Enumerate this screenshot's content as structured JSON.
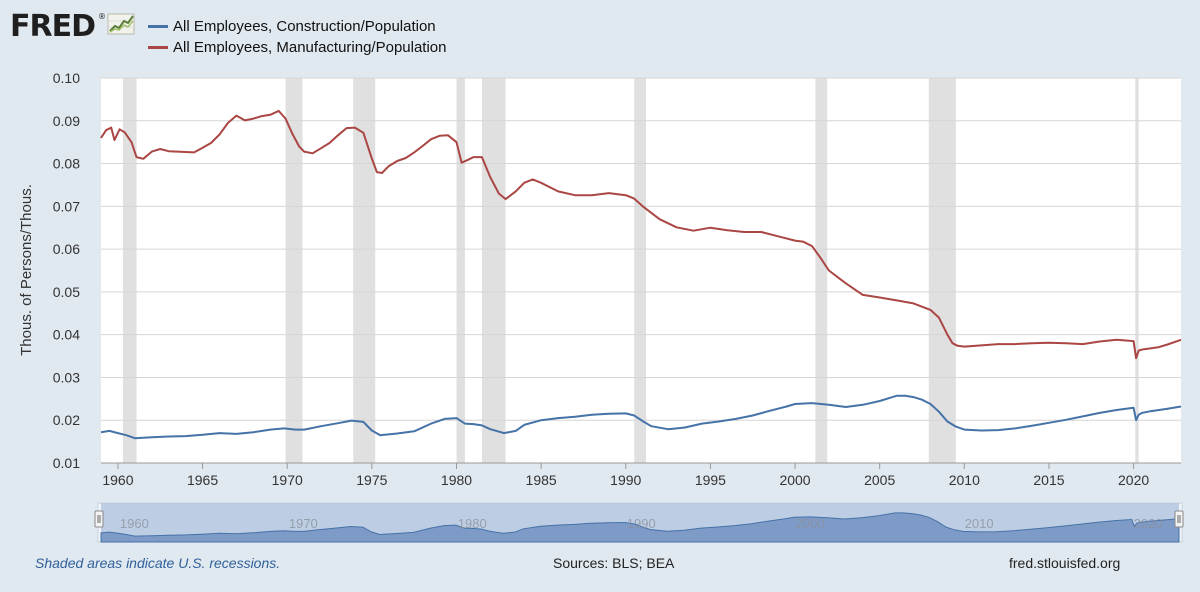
{
  "header": {
    "logo_text": "FRED",
    "logo_mark": "®",
    "logo_icon": "line-chart-icon"
  },
  "legend": [
    {
      "label": "All Employees, Construction/Population",
      "color": "#4572a7"
    },
    {
      "label": "All Employees, Manufacturing/Population",
      "color": "#aa4643"
    }
  ],
  "chart_data": {
    "type": "line",
    "title": "",
    "xlabel": "",
    "ylabel": "Thous. of Persons/Thous.",
    "xlim": [
      1959.0,
      2022.8
    ],
    "ylim": [
      0.01,
      0.1
    ],
    "yticks": [
      "0.01",
      "0.02",
      "0.03",
      "0.04",
      "0.05",
      "0.06",
      "0.07",
      "0.08",
      "0.09",
      "0.10"
    ],
    "xticks": [
      "1960",
      "1965",
      "1970",
      "1975",
      "1980",
      "1985",
      "1990",
      "1995",
      "2000",
      "2005",
      "2010",
      "2015",
      "2020"
    ],
    "recessions": [
      [
        1960.3,
        1961.1
      ],
      [
        1969.9,
        1970.9
      ],
      [
        1973.9,
        1975.2
      ],
      [
        1980.0,
        1980.5
      ],
      [
        1981.5,
        1982.9
      ],
      [
        1990.5,
        1991.2
      ],
      [
        2001.2,
        2001.9
      ],
      [
        2007.9,
        2009.5
      ],
      [
        2020.1,
        2020.3
      ]
    ],
    "series": [
      {
        "name": "All Employees, Construction/Population",
        "color": "#4572a7",
        "x": [
          1959.0,
          1959.5,
          1960.0,
          1960.5,
          1961.0,
          1962.0,
          1963.0,
          1964.0,
          1965.0,
          1966.0,
          1967.0,
          1968.0,
          1969.0,
          1969.8,
          1970.5,
          1971.0,
          1972.0,
          1973.0,
          1973.8,
          1974.5,
          1975.0,
          1975.5,
          1976.5,
          1977.5,
          1978.5,
          1979.3,
          1980.0,
          1980.5,
          1981.0,
          1981.5,
          1982.0,
          1982.8,
          1983.5,
          1984.0,
          1985.0,
          1986.0,
          1987.0,
          1988.0,
          1989.0,
          1990.0,
          1990.5,
          1991.0,
          1991.5,
          1992.5,
          1993.5,
          1994.5,
          1995.5,
          1996.5,
          1997.5,
          1998.5,
          1999.5,
          2000.0,
          2001.0,
          2002.0,
          2003.0,
          2004.0,
          2005.0,
          2006.0,
          2006.5,
          2007.0,
          2007.5,
          2008.0,
          2008.5,
          2009.0,
          2009.5,
          2010.0,
          2011.0,
          2012.0,
          2013.0,
          2014.0,
          2015.0,
          2016.0,
          2017.0,
          2018.0,
          2019.0,
          2020.0,
          2020.15,
          2020.3,
          2020.5,
          2021.0,
          2021.5,
          2022.0,
          2022.8
        ],
        "y": [
          0.0172,
          0.0175,
          0.017,
          0.0165,
          0.0158,
          0.016,
          0.0162,
          0.0163,
          0.0166,
          0.017,
          0.0168,
          0.0172,
          0.0178,
          0.0181,
          0.0178,
          0.0178,
          0.0186,
          0.0193,
          0.0199,
          0.0196,
          0.0176,
          0.0165,
          0.0169,
          0.0174,
          0.0192,
          0.0203,
          0.0205,
          0.0192,
          0.0191,
          0.0188,
          0.0179,
          0.017,
          0.0175,
          0.0189,
          0.02,
          0.0205,
          0.0208,
          0.0213,
          0.0215,
          0.0216,
          0.0211,
          0.0198,
          0.0186,
          0.0179,
          0.0183,
          0.0192,
          0.0197,
          0.0203,
          0.0211,
          0.0222,
          0.0232,
          0.0238,
          0.024,
          0.0236,
          0.0231,
          0.0236,
          0.0245,
          0.0257,
          0.0257,
          0.0254,
          0.0248,
          0.0238,
          0.022,
          0.0197,
          0.0185,
          0.0178,
          0.0176,
          0.0177,
          0.0181,
          0.0187,
          0.0194,
          0.0201,
          0.0209,
          0.0217,
          0.0224,
          0.0229,
          0.02,
          0.0213,
          0.0217,
          0.0221,
          0.0224,
          0.0227,
          0.0232
        ]
      },
      {
        "name": "All Employees, Manufacturing/Population",
        "color": "#aa4643",
        "x": [
          1959.0,
          1959.3,
          1959.6,
          1959.8,
          1960.1,
          1960.4,
          1960.8,
          1961.1,
          1961.5,
          1962.0,
          1962.5,
          1963.0,
          1963.5,
          1964.0,
          1964.5,
          1965.0,
          1965.5,
          1966.0,
          1966.5,
          1967.0,
          1967.5,
          1968.0,
          1968.5,
          1969.0,
          1969.5,
          1969.9,
          1970.3,
          1970.7,
          1971.0,
          1971.5,
          1972.0,
          1972.5,
          1973.0,
          1973.5,
          1974.0,
          1974.5,
          1975.0,
          1975.3,
          1975.6,
          1976.0,
          1976.5,
          1977.0,
          1977.5,
          1978.0,
          1978.5,
          1979.0,
          1979.5,
          1980.0,
          1980.3,
          1980.7,
          1981.0,
          1981.5,
          1982.0,
          1982.5,
          1982.9,
          1983.5,
          1984.0,
          1984.5,
          1985.0,
          1986.0,
          1987.0,
          1988.0,
          1989.0,
          1990.0,
          1990.5,
          1991.0,
          1992.0,
          1993.0,
          1994.0,
          1995.0,
          1996.0,
          1997.0,
          1998.0,
          1999.0,
          2000.0,
          2000.5,
          2001.0,
          2001.5,
          2002.0,
          2003.0,
          2004.0,
          2005.0,
          2006.0,
          2007.0,
          2008.0,
          2008.5,
          2009.0,
          2009.3,
          2009.6,
          2010.0,
          2011.0,
          2012.0,
          2013.0,
          2014.0,
          2015.0,
          2016.0,
          2017.0,
          2018.0,
          2019.0,
          2020.0,
          2020.15,
          2020.3,
          2020.6,
          2021.0,
          2021.5,
          2022.0,
          2022.8
        ],
        "y": [
          0.086,
          0.0878,
          0.0884,
          0.0855,
          0.088,
          0.0873,
          0.085,
          0.0815,
          0.0811,
          0.0828,
          0.0834,
          0.0829,
          0.0828,
          0.0827,
          0.0826,
          0.0837,
          0.0848,
          0.0868,
          0.0895,
          0.0912,
          0.0901,
          0.0905,
          0.0911,
          0.0914,
          0.0923,
          0.0905,
          0.087,
          0.084,
          0.0828,
          0.0824,
          0.0836,
          0.0848,
          0.0866,
          0.0883,
          0.0884,
          0.0872,
          0.0812,
          0.078,
          0.0778,
          0.0794,
          0.0806,
          0.0813,
          0.0826,
          0.0841,
          0.0857,
          0.0865,
          0.0866,
          0.085,
          0.0802,
          0.0809,
          0.0815,
          0.0815,
          0.0768,
          0.073,
          0.0717,
          0.0735,
          0.0755,
          0.0763,
          0.0755,
          0.0735,
          0.0726,
          0.0726,
          0.0731,
          0.0726,
          0.0718,
          0.07,
          0.067,
          0.0651,
          0.0643,
          0.065,
          0.0644,
          0.064,
          0.064,
          0.063,
          0.062,
          0.0617,
          0.0607,
          0.058,
          0.055,
          0.052,
          0.0493,
          0.0487,
          0.048,
          0.0473,
          0.0458,
          0.044,
          0.04,
          0.038,
          0.0374,
          0.0372,
          0.0375,
          0.0378,
          0.0378,
          0.038,
          0.0381,
          0.038,
          0.0378,
          0.0384,
          0.0388,
          0.0385,
          0.0345,
          0.0363,
          0.0366,
          0.0368,
          0.0371,
          0.0377,
          0.0388
        ]
      }
    ]
  },
  "navigator": {
    "labels": [
      "1960",
      "1970",
      "1980",
      "1990",
      "2000",
      "2010",
      "2020"
    ]
  },
  "footer": {
    "note": "Shaded areas indicate U.S. recessions.",
    "sources": "Sources: BLS; BEA",
    "site": "fred.stlouisfed.org"
  }
}
